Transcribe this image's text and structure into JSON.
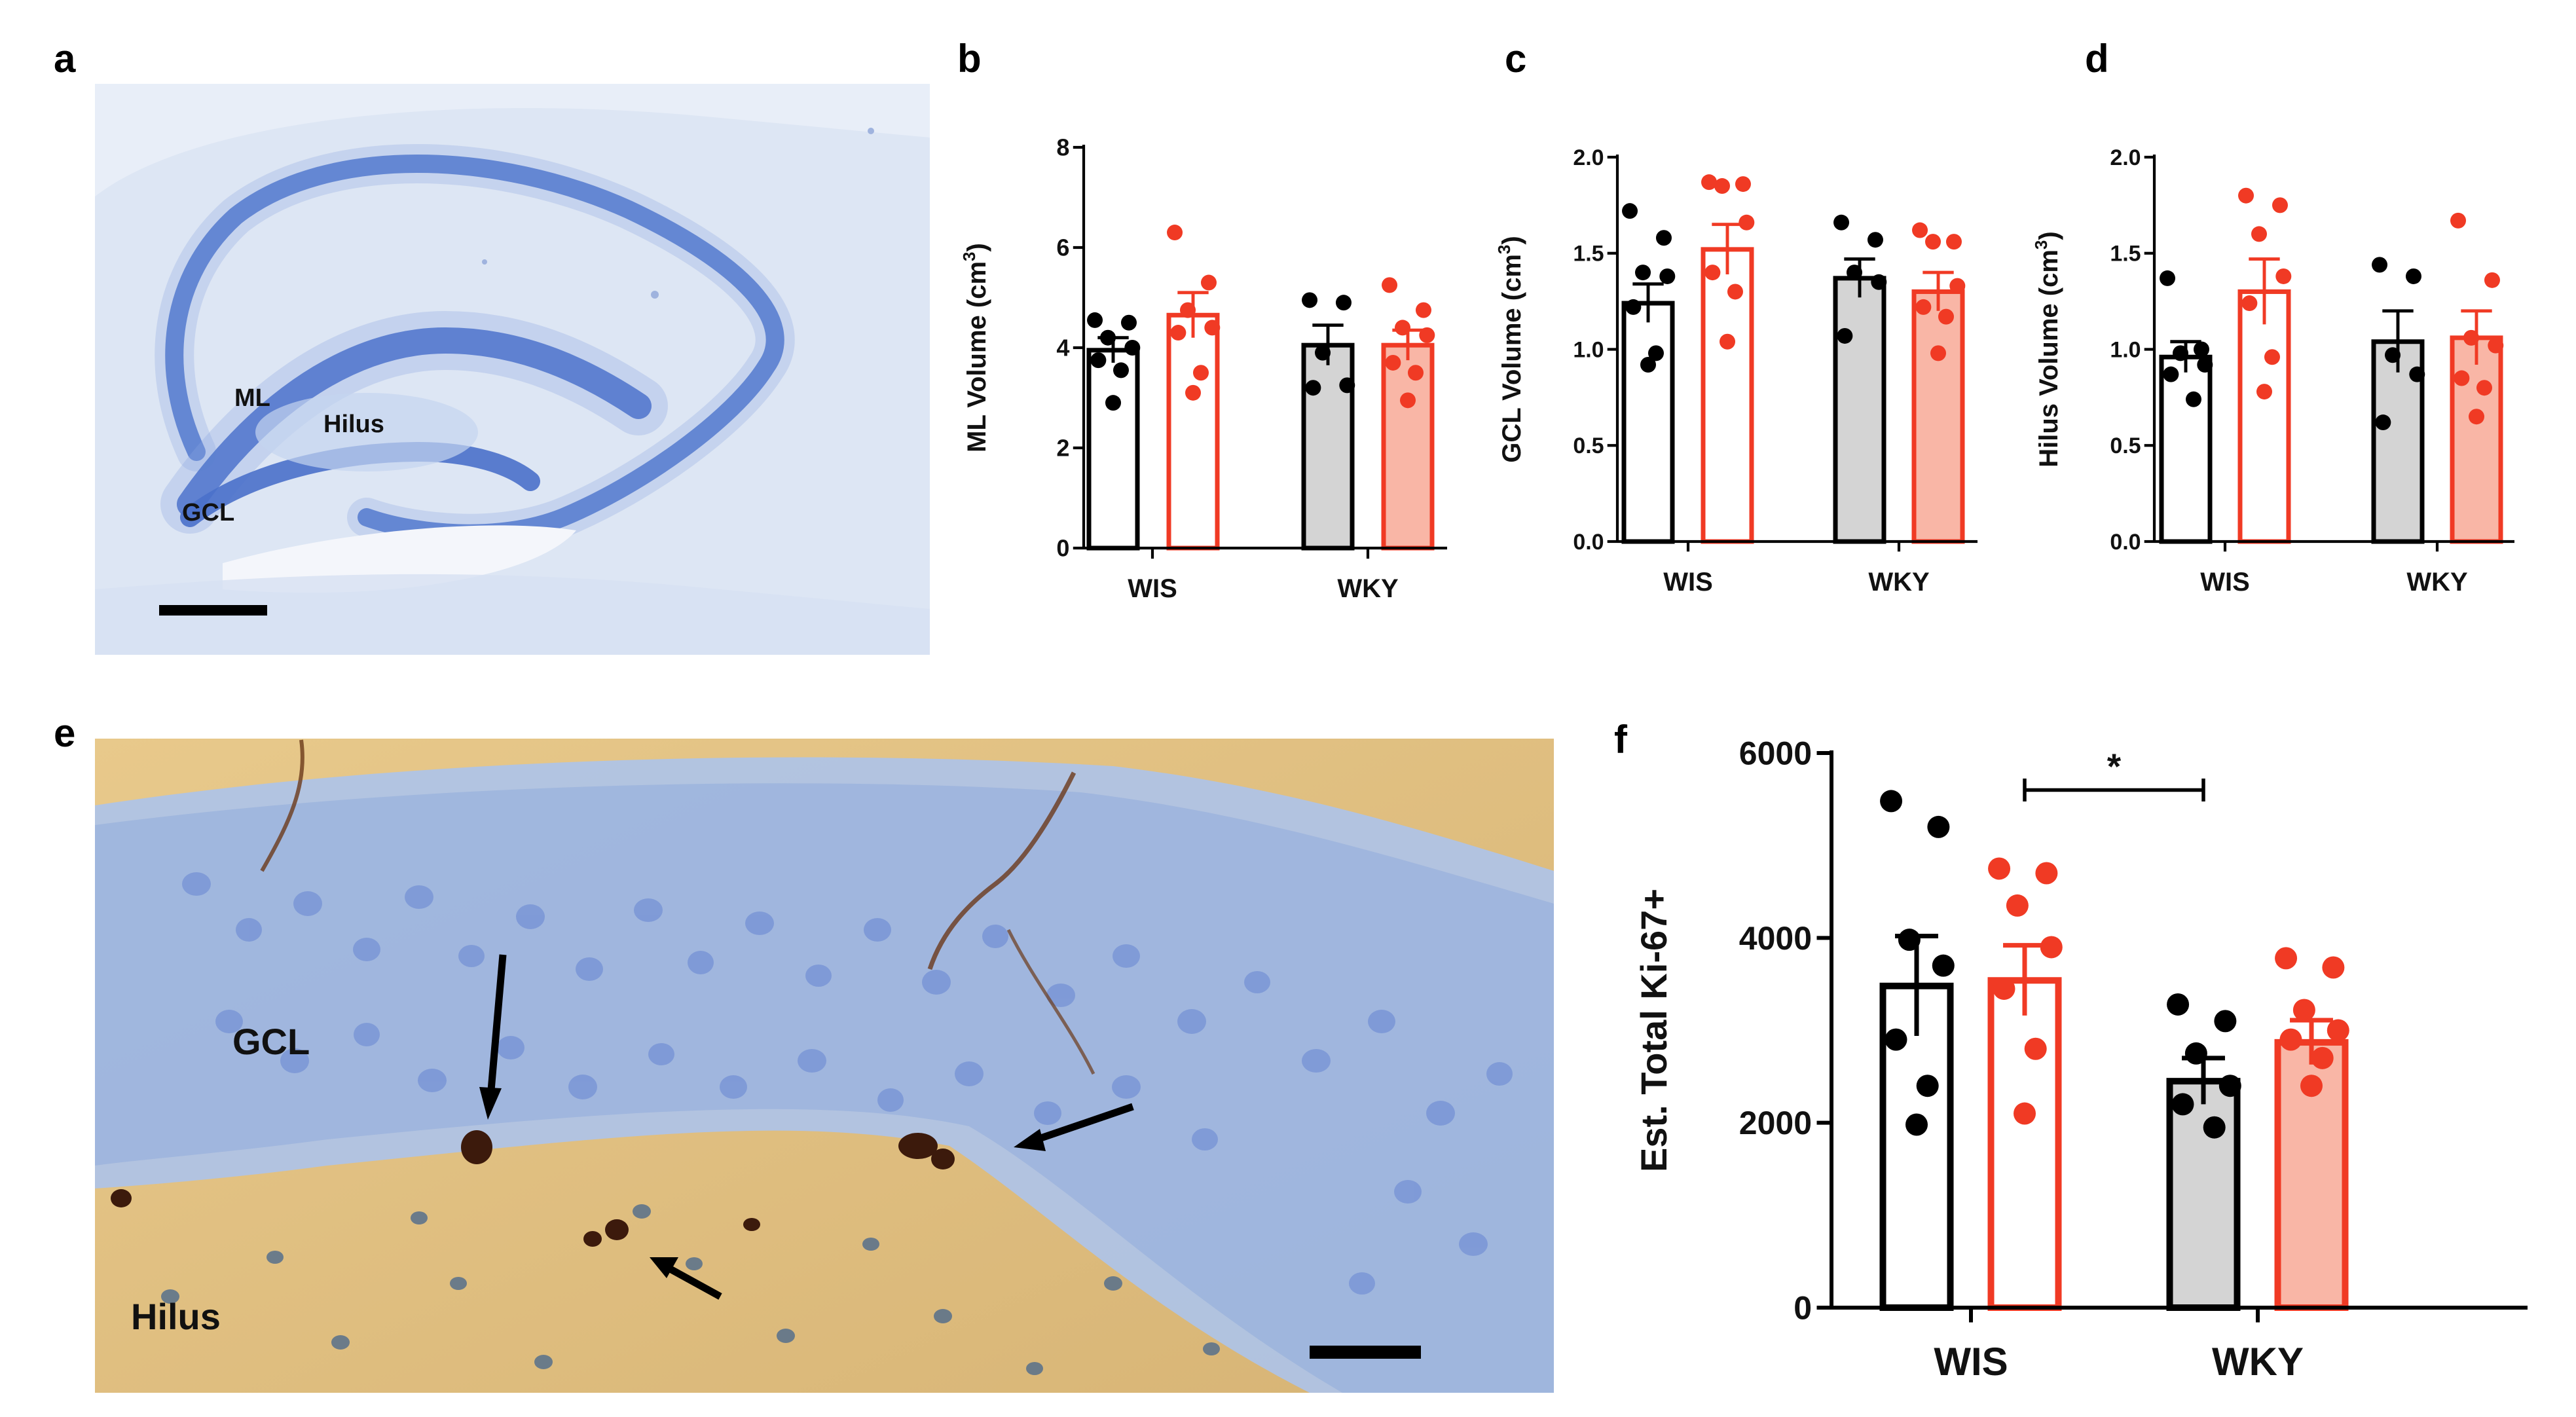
{
  "panels": {
    "a": "a",
    "b": "b",
    "c": "c",
    "d": "d",
    "e": "e",
    "f": "f"
  },
  "micrograph_a": {
    "labels": {
      "ml": "ML",
      "hilus": "Hilus",
      "gcl": "GCL"
    }
  },
  "micrograph_e": {
    "labels": {
      "gcl": "GCL",
      "hilus": "Hilus"
    }
  },
  "colors": {
    "black": "#000000",
    "red": "#f03a24",
    "gray_fill": "#d4d4d4",
    "pink_fill": "#f9b6a6",
    "nissl_blue": "#5d86d2",
    "tissue_pale_blue": "#dbe5f4",
    "dab_tan": "#e6c889",
    "dab_brown": "#4a2210"
  },
  "chart_data": [
    {
      "panel": "b",
      "type": "bar",
      "categories": [
        "WIS",
        "WKY"
      ],
      "ylabel": "ML Volume (cm3)",
      "ylabel_main": "ML Volume (cm",
      "ylabel_sup": "3",
      "ylabel_close": ")",
      "ylim": [
        0,
        8
      ],
      "yticks": [
        "0",
        "2",
        "4",
        "6",
        "8"
      ],
      "tick_values": [
        0,
        2,
        4,
        6,
        8
      ],
      "series": [
        {
          "group": "WIS",
          "style": "black-open",
          "mean": 3.95,
          "sem": 0.25,
          "points": [
            4.55,
            4.5,
            4.2,
            4.0,
            3.75,
            3.55,
            2.9
          ]
        },
        {
          "group": "WIS",
          "style": "red-open",
          "mean": 4.65,
          "sem": 0.45,
          "points": [
            6.3,
            5.3,
            4.75,
            4.4,
            4.3,
            3.5,
            3.1
          ]
        },
        {
          "group": "WKY",
          "style": "gray",
          "mean": 4.05,
          "sem": 0.4,
          "points": [
            4.95,
            4.9,
            3.9,
            3.25,
            3.2
          ]
        },
        {
          "group": "WKY",
          "style": "pink",
          "mean": 4.05,
          "sem": 0.3,
          "points": [
            5.25,
            4.75,
            4.4,
            4.25,
            3.7,
            3.5,
            2.95
          ]
        }
      ]
    },
    {
      "panel": "c",
      "type": "bar",
      "categories": [
        "WIS",
        "WKY"
      ],
      "ylabel": "GCL Volume (cm3)",
      "ylabel_main": "GCL Volume (cm",
      "ylabel_sup": "3",
      "ylabel_close": ")",
      "ylim": [
        0,
        2
      ],
      "yticks": [
        "0.0",
        "0.5",
        "1.0",
        "1.5",
        "2.0"
      ],
      "tick_values": [
        0,
        0.5,
        1.0,
        1.5,
        2.0
      ],
      "series": [
        {
          "group": "WIS",
          "style": "black-open",
          "mean": 1.24,
          "sem": 0.1,
          "points": [
            1.72,
            1.58,
            1.4,
            1.38,
            1.22,
            0.98,
            0.92
          ]
        },
        {
          "group": "WIS",
          "style": "red-open",
          "mean": 1.52,
          "sem": 0.13,
          "points": [
            1.87,
            1.86,
            1.85,
            1.66,
            1.4,
            1.3,
            1.04
          ]
        },
        {
          "group": "WKY",
          "style": "gray",
          "mean": 1.37,
          "sem": 0.1,
          "points": [
            1.66,
            1.57,
            1.4,
            1.35,
            1.07
          ]
        },
        {
          "group": "WKY",
          "style": "pink",
          "mean": 1.3,
          "sem": 0.1,
          "points": [
            1.62,
            1.56,
            1.56,
            1.33,
            1.22,
            1.17,
            0.98
          ]
        }
      ]
    },
    {
      "panel": "d",
      "type": "bar",
      "categories": [
        "WIS",
        "WKY"
      ],
      "ylabel": "Hilus Volume (cm3)",
      "ylabel_main": "Hilus Volume (cm",
      "ylabel_sup": "3",
      "ylabel_close": ")",
      "ylim": [
        0,
        2
      ],
      "yticks": [
        "0.0",
        "0.5",
        "1.0",
        "1.5",
        "2.0"
      ],
      "tick_values": [
        0,
        0.5,
        1.0,
        1.5,
        2.0
      ],
      "series": [
        {
          "group": "WIS",
          "style": "black-open",
          "mean": 0.96,
          "sem": 0.08,
          "points": [
            1.37,
            1.0,
            0.98,
            0.92,
            0.87,
            0.74
          ]
        },
        {
          "group": "WIS",
          "style": "red-open",
          "mean": 1.3,
          "sem": 0.17,
          "points": [
            1.8,
            1.75,
            1.6,
            1.38,
            1.24,
            0.96,
            0.78
          ]
        },
        {
          "group": "WKY",
          "style": "gray",
          "mean": 1.04,
          "sem": 0.16,
          "points": [
            1.44,
            1.38,
            0.97,
            0.87,
            0.62
          ]
        },
        {
          "group": "WKY",
          "style": "pink",
          "mean": 1.06,
          "sem": 0.14,
          "points": [
            1.67,
            1.36,
            1.06,
            1.02,
            0.85,
            0.8,
            0.65
          ]
        }
      ]
    },
    {
      "panel": "f",
      "type": "bar",
      "categories": [
        "WIS",
        "WKY"
      ],
      "ylabel": "Est. Total Ki-67+",
      "ylabel_main": "Est. Total Ki-67+",
      "ylabel_sup": "",
      "ylabel_close": "",
      "ylim": [
        0,
        6000
      ],
      "yticks": [
        "0",
        "2000",
        "4000",
        "6000"
      ],
      "tick_values": [
        0,
        2000,
        4000,
        6000
      ],
      "significance": {
        "label": "*",
        "from_series": 1,
        "to_series": 2,
        "y": 5600
      },
      "series": [
        {
          "group": "WIS",
          "style": "black-open",
          "mean": 3480,
          "sem": 540,
          "points": [
            5480,
            5200,
            3980,
            3700,
            2900,
            2400,
            1980
          ]
        },
        {
          "group": "WIS",
          "style": "red-open",
          "mean": 3540,
          "sem": 380,
          "points": [
            4750,
            4700,
            4350,
            3900,
            3450,
            2800,
            2100
          ]
        },
        {
          "group": "WKY",
          "style": "gray",
          "mean": 2450,
          "sem": 250,
          "points": [
            3280,
            3100,
            2750,
            2400,
            2200,
            1950
          ]
        },
        {
          "group": "WKY",
          "style": "pink",
          "mean": 2870,
          "sem": 240,
          "points": [
            3780,
            3680,
            3220,
            3000,
            2900,
            2700,
            2400
          ]
        }
      ]
    }
  ]
}
